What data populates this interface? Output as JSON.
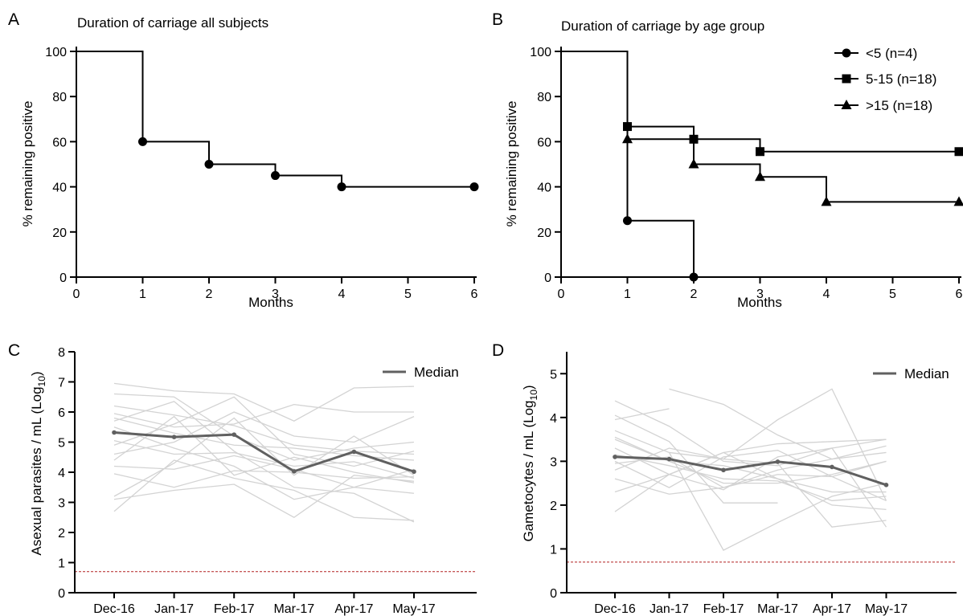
{
  "colors": {
    "axis": "#000000",
    "individual": "#d3d3d3",
    "median": "#606060",
    "threshold": "#b22222"
  },
  "chart_data": [
    {
      "id": "A",
      "letter": "A",
      "type": "line",
      "step": true,
      "title": "Duration of carriage all subjects",
      "xlabel": "Months",
      "ylabel": "% remaining positive",
      "xlim": [
        0,
        6
      ],
      "ylim": [
        0,
        100
      ],
      "x_ticks": [
        0,
        1,
        2,
        3,
        4,
        5,
        6
      ],
      "y_ticks": [
        0,
        20,
        40,
        60,
        80,
        100
      ],
      "series": [
        {
          "marker": "circle",
          "x": [
            0,
            1,
            2,
            3,
            4,
            6
          ],
          "y": [
            100,
            60,
            50,
            45,
            40,
            40
          ]
        }
      ]
    },
    {
      "id": "B",
      "letter": "B",
      "type": "line",
      "step": true,
      "title": "Duration of carriage by age group",
      "xlabel": "Months",
      "ylabel": "% remaining positive",
      "xlim": [
        0,
        6
      ],
      "ylim": [
        0,
        100
      ],
      "x_ticks": [
        0,
        1,
        2,
        3,
        4,
        5,
        6
      ],
      "y_ticks": [
        0,
        20,
        40,
        60,
        80,
        100
      ],
      "legend_position": "top-right",
      "series": [
        {
          "name": "<5 (n=4)",
          "marker": "circle",
          "x": [
            0,
            1,
            2
          ],
          "y": [
            100,
            25,
            0
          ]
        },
        {
          "name": "5-15 (n=18)",
          "marker": "square",
          "x": [
            0,
            1,
            2,
            3,
            6
          ],
          "y": [
            100,
            66.7,
            61.1,
            55.6,
            55.6
          ]
        },
        {
          "name": ">15 (n=18)",
          "marker": "triangle",
          "x": [
            0,
            1,
            2,
            3,
            4,
            6
          ],
          "y": [
            100,
            61.1,
            50,
            44.4,
            33.3,
            33.3
          ]
        }
      ]
    },
    {
      "id": "C",
      "letter": "C",
      "type": "line",
      "ylabel": "Asexual parasites / mL (Log10)",
      "ylabel_main": "Asexual parasites / mL (Log",
      "ylabel_sub": "10",
      "ylabel_end": ")",
      "categories": [
        "Dec-16",
        "Jan-17",
        "Feb-17",
        "Mar-17",
        "Apr-17",
        "May-17"
      ],
      "ylim": [
        0,
        8
      ],
      "y_ticks": [
        0,
        1,
        2,
        3,
        4,
        5,
        6,
        7,
        8
      ],
      "threshold": 0.7,
      "legend_position": "top-right",
      "median": {
        "name": "Median",
        "values": [
          5.32,
          5.17,
          5.25,
          4.03,
          4.68,
          4.02
        ]
      },
      "individuals": [
        [
          6.95,
          6.7,
          6.6,
          5.7,
          6.8,
          6.85
        ],
        [
          6.6,
          6.5,
          5.2,
          4.4,
          4.8,
          5.0
        ],
        [
          6.2,
          5.9,
          5.55,
          4.9,
          4.7,
          4.6
        ],
        [
          5.95,
          5.5,
          5.6,
          6.25,
          6.0,
          6.0
        ],
        [
          5.8,
          5.3,
          4.9,
          4.8,
          4.55,
          4.4
        ],
        [
          5.7,
          6.35,
          4.7,
          3.5,
          3.3,
          2.35
        ],
        [
          5.05,
          4.6,
          4.65,
          4.2,
          4.35,
          3.8
        ],
        [
          4.6,
          5.0,
          6.0,
          5.2,
          5.0,
          5.85
        ],
        [
          4.4,
          5.85,
          3.9,
          4.5,
          4.0,
          3.65
        ],
        [
          4.2,
          4.1,
          4.55,
          4.1,
          3.5,
          4.1
        ],
        [
          3.95,
          3.5,
          4.05,
          4.0,
          3.8,
          3.85
        ],
        [
          3.2,
          4.3,
          5.8,
          3.9,
          5.2,
          3.9
        ],
        [
          3.1,
          3.4,
          3.6,
          2.5,
          3.9,
          3.7
        ],
        [
          2.7,
          4.4,
          3.8,
          3.4,
          2.5,
          2.4
        ],
        [
          5.5,
          4.8,
          4.2,
          3.1,
          3.5,
          3.3
        ],
        [
          4.9,
          5.6,
          6.5,
          4.6,
          4.2,
          4.7
        ]
      ]
    },
    {
      "id": "D",
      "letter": "D",
      "type": "line",
      "ylabel": "Gametocytes / mL (Log10)",
      "ylabel_main": "Gametocytes / mL (Log",
      "ylabel_sub": "10",
      "ylabel_end": ")",
      "categories": [
        "Dec-16",
        "Jan-17",
        "Feb-17",
        "Mar-17",
        "Apr-17",
        "May-17"
      ],
      "ylim": [
        0,
        5.5
      ],
      "y_ticks": [
        0,
        1,
        2,
        3,
        4,
        5
      ],
      "threshold": 0.7,
      "legend_position": "top-right",
      "median": {
        "name": "Median",
        "values": [
          3.1,
          3.05,
          2.8,
          2.99,
          2.87,
          2.46
        ]
      },
      "individuals": [
        [
          4.38,
          3.8,
          3.0,
          2.9,
          3.3,
          3.5
        ],
        [
          4.05,
          3.45,
          2.05,
          2.05,
          null,
          null
        ],
        [
          3.95,
          4.2,
          null,
          null,
          null,
          null
        ],
        [
          3.7,
          3.2,
          3.05,
          3.95,
          4.65,
          2.1
        ],
        [
          3.55,
          3.0,
          2.5,
          2.5,
          2.7,
          3.0
        ],
        [
          3.3,
          2.7,
          3.2,
          3.4,
          3.45,
          3.5
        ],
        [
          3.15,
          2.9,
          2.6,
          2.55,
          2.1,
          2.2
        ],
        [
          3.0,
          2.4,
          3.1,
          3.25,
          2.65,
          3.0
        ],
        [
          2.95,
          3.1,
          2.4,
          2.8,
          3.05,
          3.2
        ],
        [
          2.8,
          3.3,
          3.05,
          2.95,
          1.5,
          1.65
        ],
        [
          2.6,
          2.25,
          2.4,
          2.7,
          2.65,
          2.1
        ],
        [
          2.3,
          2.7,
          2.35,
          3.1,
          3.3,
          1.5
        ],
        [
          1.85,
          2.7,
          3.2,
          2.6,
          2.0,
          1.9
        ],
        [
          null,
          4.65,
          4.3,
          3.6,
          3.05,
          3.35
        ],
        [
          null,
          3.2,
          0.97,
          1.6,
          2.2,
          2.5
        ],
        [
          3.5,
          3.0,
          2.9,
          2.6,
          2.3,
          2.3
        ]
      ]
    }
  ]
}
